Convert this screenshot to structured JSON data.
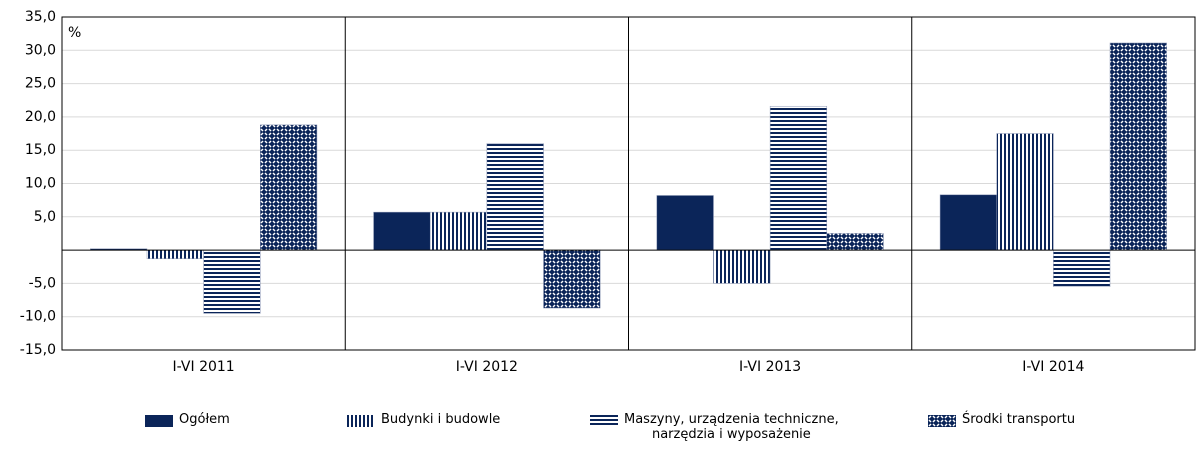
{
  "chart_data": {
    "type": "bar",
    "annotation": "%",
    "categories": [
      "I-VI 2011",
      "I-VI 2012",
      "I-VI 2013",
      "I-VI 2014"
    ],
    "series": [
      {
        "name": "Ogółem",
        "color": "#0b2559",
        "values": [
          0.2,
          5.7,
          8.2,
          8.3
        ]
      },
      {
        "name": "Budynki i budowle",
        "color": "#0b2559",
        "values": [
          -1.3,
          5.7,
          -5.0,
          17.5
        ]
      },
      {
        "name": "Maszyny, urządzenia techniczne,\nnarzędzia i wyposażenie",
        "color": "#0b2559",
        "values": [
          -9.5,
          16.0,
          21.6,
          -5.5
        ]
      },
      {
        "name": "Środki transportu",
        "color": "#0b2559",
        "values": [
          18.8,
          -8.7,
          2.5,
          31.1
        ]
      }
    ],
    "ylim": [
      -15,
      35
    ],
    "yticks": [
      {
        "value": -15,
        "label": "-15,0"
      },
      {
        "value": -10,
        "label": "-10,0"
      },
      {
        "value": -5,
        "label": "-5,0"
      },
      {
        "value": 5,
        "label": "5,0"
      },
      {
        "value": 10,
        "label": "10,0"
      },
      {
        "value": 15,
        "label": "15,0"
      },
      {
        "value": 20,
        "label": "20,0"
      },
      {
        "value": 25,
        "label": "25,0"
      },
      {
        "value": 30,
        "label": "30,0"
      },
      {
        "value": 35,
        "label": "35,0"
      }
    ],
    "grid": true
  }
}
